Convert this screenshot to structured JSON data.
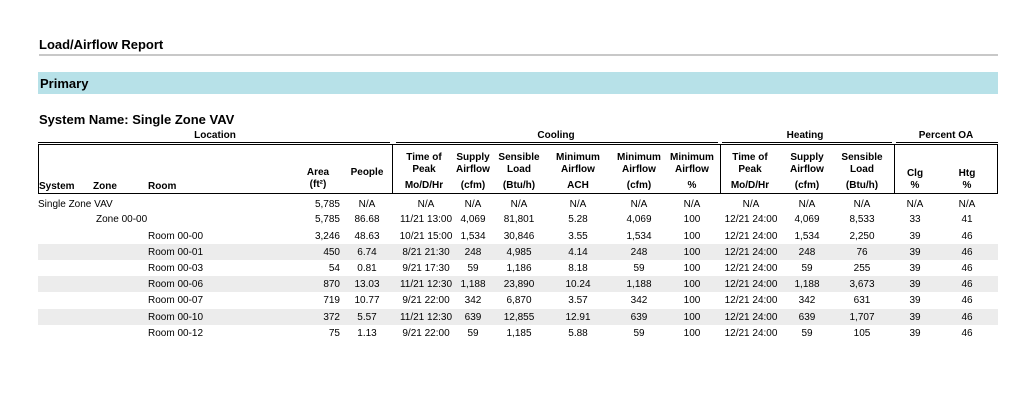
{
  "report": {
    "title": "Load/Airflow Report",
    "section": "Primary",
    "system_name": "System Name: Single Zone VAV"
  },
  "groups": {
    "location": "Location",
    "cooling": "Cooling",
    "heating": "Heating",
    "percent_oa": "Percent OA"
  },
  "headers": {
    "system": "System",
    "zone": "Zone",
    "room": "Room",
    "area_1": "Area",
    "area_2": "(ft²)",
    "people": "People",
    "c_time_1": "Time of",
    "c_time_2": "Peak",
    "c_time_3": "Mo/D/Hr",
    "c_supply_1": "Supply",
    "c_supply_2": "Airflow",
    "c_supply_3": "(cfm)",
    "c_sens_1": "Sensible",
    "c_sens_2": "Load",
    "c_sens_3": "(Btu/h)",
    "c_minach_1": "Minimum",
    "c_minach_2": "Airflow",
    "c_minach_3": "ACH",
    "c_mincfm_1": "Minimum",
    "c_mincfm_2": "Airflow",
    "c_mincfm_3": "(cfm)",
    "c_minpct_1": "Minimum",
    "c_minpct_2": "Airflow",
    "c_minpct_3": "%",
    "h_time_1": "Time of",
    "h_time_2": "Peak",
    "h_time_3": "Mo/D/Hr",
    "h_supply_1": "Supply",
    "h_supply_2": "Airflow",
    "h_supply_3": "(cfm)",
    "h_sens_1": "Sensible",
    "h_sens_2": "Load",
    "h_sens_3": "(Btu/h)",
    "clg_1": "Clg",
    "clg_2": "%",
    "htg_1": "Htg",
    "htg_2": "%"
  },
  "rows": [
    {
      "system": "Single Zone VAV",
      "zone": "",
      "room": "",
      "area": "5,785",
      "people": "N/A",
      "c_time": "N/A",
      "c_supply": "N/A",
      "c_sens": "N/A",
      "c_ach": "N/A",
      "c_mincfm": "N/A",
      "c_minpct": "N/A",
      "h_time": "N/A",
      "h_supply": "N/A",
      "h_sens": "N/A",
      "clg": "N/A",
      "htg": "N/A"
    },
    {
      "system": "",
      "zone": "Zone 00-00",
      "room": "",
      "area": "5,785",
      "people": "86.68",
      "c_time": "11/21 13:00",
      "c_supply": "4,069",
      "c_sens": "81,801",
      "c_ach": "5.28",
      "c_mincfm": "4,069",
      "c_minpct": "100",
      "h_time": "12/21 24:00",
      "h_supply": "4,069",
      "h_sens": "8,533",
      "clg": "33",
      "htg": "41"
    },
    {
      "system": "",
      "zone": "",
      "room": "Room 00-00",
      "area": "3,246",
      "people": "48.63",
      "c_time": "10/21 15:00",
      "c_supply": "1,534",
      "c_sens": "30,846",
      "c_ach": "3.55",
      "c_mincfm": "1,534",
      "c_minpct": "100",
      "h_time": "12/21 24:00",
      "h_supply": "1,534",
      "h_sens": "2,250",
      "clg": "39",
      "htg": "46"
    },
    {
      "system": "",
      "zone": "",
      "room": "Room 00-01",
      "area": "450",
      "people": "6.74",
      "c_time": "8/21 21:30",
      "c_supply": "248",
      "c_sens": "4,985",
      "c_ach": "4.14",
      "c_mincfm": "248",
      "c_minpct": "100",
      "h_time": "12/21 24:00",
      "h_supply": "248",
      "h_sens": "76",
      "clg": "39",
      "htg": "46"
    },
    {
      "system": "",
      "zone": "",
      "room": "Room 00-03",
      "area": "54",
      "people": "0.81",
      "c_time": "9/21 17:30",
      "c_supply": "59",
      "c_sens": "1,186",
      "c_ach": "8.18",
      "c_mincfm": "59",
      "c_minpct": "100",
      "h_time": "12/21 24:00",
      "h_supply": "59",
      "h_sens": "255",
      "clg": "39",
      "htg": "46"
    },
    {
      "system": "",
      "zone": "",
      "room": "Room 00-06",
      "area": "870",
      "people": "13.03",
      "c_time": "11/21 12:30",
      "c_supply": "1,188",
      "c_sens": "23,890",
      "c_ach": "10.24",
      "c_mincfm": "1,188",
      "c_minpct": "100",
      "h_time": "12/21 24:00",
      "h_supply": "1,188",
      "h_sens": "3,673",
      "clg": "39",
      "htg": "46"
    },
    {
      "system": "",
      "zone": "",
      "room": "Room 00-07",
      "area": "719",
      "people": "10.77",
      "c_time": "9/21 22:00",
      "c_supply": "342",
      "c_sens": "6,870",
      "c_ach": "3.57",
      "c_mincfm": "342",
      "c_minpct": "100",
      "h_time": "12/21 24:00",
      "h_supply": "342",
      "h_sens": "631",
      "clg": "39",
      "htg": "46"
    },
    {
      "system": "",
      "zone": "",
      "room": "Room 00-10",
      "area": "372",
      "people": "5.57",
      "c_time": "11/21 12:30",
      "c_supply": "639",
      "c_sens": "12,855",
      "c_ach": "12.91",
      "c_mincfm": "639",
      "c_minpct": "100",
      "h_time": "12/21 24:00",
      "h_supply": "639",
      "h_sens": "1,707",
      "clg": "39",
      "htg": "46"
    },
    {
      "system": "",
      "zone": "",
      "room": "Room 00-12",
      "area": "75",
      "people": "1.13",
      "c_time": "9/21 22:00",
      "c_supply": "59",
      "c_sens": "1,185",
      "c_ach": "5.88",
      "c_mincfm": "59",
      "c_minpct": "100",
      "h_time": "12/21 24:00",
      "h_supply": "59",
      "h_sens": "105",
      "clg": "39",
      "htg": "46"
    }
  ]
}
